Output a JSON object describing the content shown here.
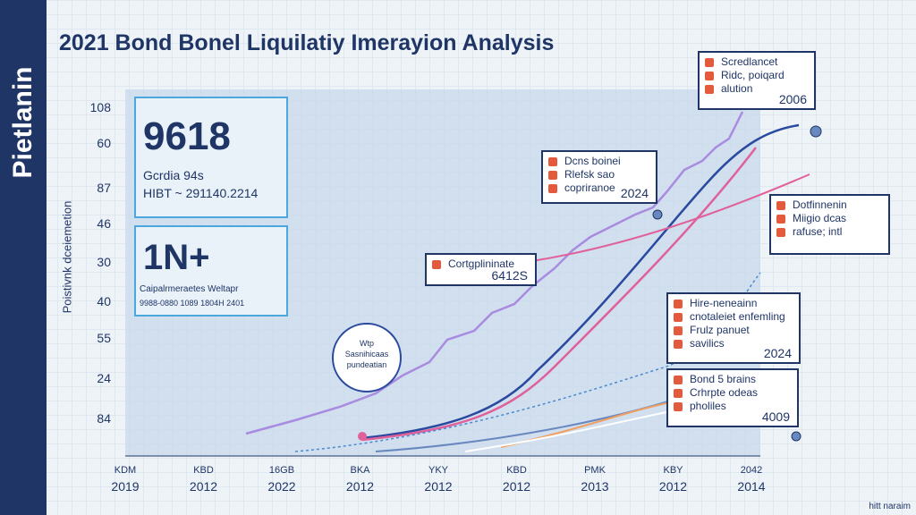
{
  "sidebar": "Pietlanin",
  "title": "2021 Bond Bonel Liquilatiy Imerayion Analysis",
  "y_axis_label": "Poistivnk dceiemetion",
  "y_labels": [
    "108",
    "60",
    "87",
    "46",
    "30",
    "40",
    "55",
    "24",
    "84"
  ],
  "x_labels": [
    {
      "top": "KDM",
      "bottom": "2019"
    },
    {
      "top": "KBD",
      "bottom": "2012"
    },
    {
      "top": "16GB",
      "bottom": "2022"
    },
    {
      "top": "BKA",
      "bottom": "2012"
    },
    {
      "top": "YKY",
      "bottom": "2012"
    },
    {
      "top": "KBD",
      "bottom": "2012"
    },
    {
      "top": "PMK",
      "bottom": "2013"
    },
    {
      "top": "KBY",
      "bottom": "2012"
    },
    {
      "top": "2042",
      "bottom": "2014"
    }
  ],
  "stat_cards": [
    {
      "value": "9618",
      "lines": [
        "Gcrdia 94s",
        "HIBT ~ 291140.2214"
      ]
    },
    {
      "value": "1N+",
      "lines": [
        "Caipalrmeraetes Weltapr",
        "9988-0880 1089 1804H 2401"
      ]
    }
  ],
  "callouts": [
    {
      "lines": [
        "Scredlancet",
        "Ridc, poiqard",
        "alution"
      ],
      "year": "2006"
    },
    {
      "lines": [
        "Dcns boinei",
        "Rlefsk sao",
        "copriranoe"
      ],
      "year": "2024"
    },
    {
      "lines": [
        "Dotfinnenin",
        "Miigio dcas",
        "rafuse; intl"
      ]
    },
    {
      "lines": [
        "Cortgplininate"
      ],
      "year": "6412S"
    },
    {
      "lines": [
        "Hire-neneainn",
        "cnotaleiet enfemling",
        "Frulz panuet",
        "savilics"
      ],
      "year": "2024"
    },
    {
      "lines": [
        "Bond 5 brains",
        "Crhrpte odeas",
        "pholiles"
      ],
      "year": "4009"
    }
  ],
  "circle_note": [
    "Wtp",
    "Sasnihicaas",
    "pundeatian"
  ],
  "footer": "hitt naraim"
}
